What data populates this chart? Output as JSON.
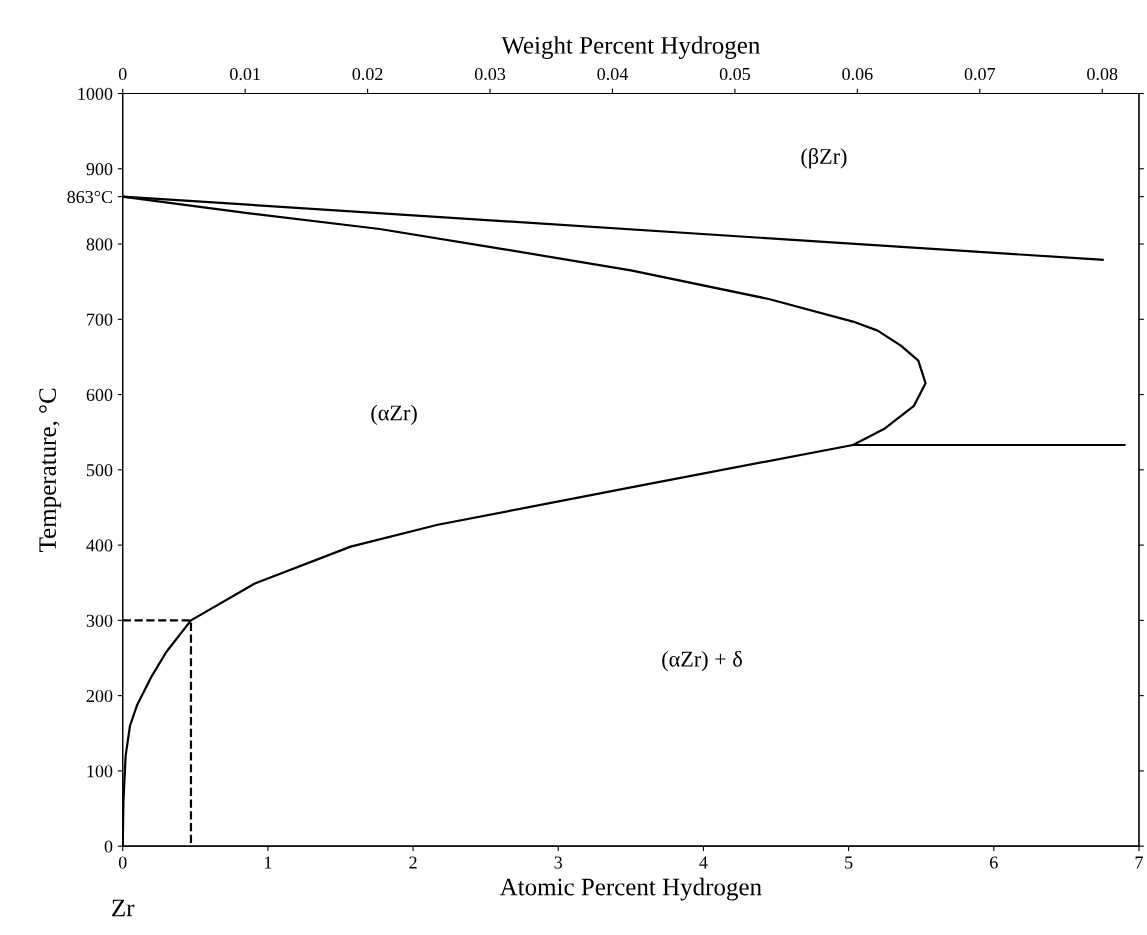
{
  "chart_data": {
    "type": "line",
    "xlabel": "Atomic Percent Hydrogen",
    "ylabel": "Temperature, °C",
    "x2label": "Weight Percent Hydrogen",
    "xlim": [
      0,
      7
    ],
    "ylim": [
      0,
      1000
    ],
    "xticks": [
      0,
      1,
      2,
      3,
      4,
      5,
      6,
      7
    ],
    "yticks": [
      0,
      100,
      200,
      300,
      400,
      500,
      600,
      700,
      800,
      {
        "value": 863,
        "label": "863°C"
      },
      900,
      1000
    ],
    "x2lim": [
      0,
      0.083
    ],
    "x2ticks": [
      0,
      0.01,
      0.02,
      0.03,
      0.04,
      0.05,
      0.06,
      0.07,
      0.08
    ],
    "grid": false,
    "legend": false,
    "marker": "none",
    "series": [
      {
        "color": "#000000",
        "line_style": "solid",
        "x": [
          0,
          6.75
        ],
        "values": [
          863,
          779
        ]
      },
      {
        "color": "#000000",
        "line_style": "solid",
        "x": [
          0,
          0.005,
          0.02,
          0.05,
          0.1,
          0.2,
          0.3,
          0.47,
          0.91,
          1.57,
          2.17,
          3.59,
          5.03,
          5.25,
          5.45,
          5.53,
          5.48,
          5.36,
          5.2,
          5.03,
          4.45,
          3.5,
          2.63,
          1.77,
          0.86,
          0
        ],
        "values": [
          0,
          60,
          120,
          160,
          188,
          226,
          258,
          300,
          349,
          398,
          427,
          480,
          533,
          555,
          585,
          615,
          645,
          665,
          685,
          697,
          727,
          765,
          793,
          820,
          841,
          863
        ]
      },
      {
        "color": "#000000",
        "line_style": "solid",
        "x": [
          5.03,
          6.9
        ],
        "values": [
          533,
          533
        ]
      },
      {
        "color": "#000000",
        "line_style": "dashed",
        "x": [
          0,
          0.47,
          0.47
        ],
        "values": [
          300,
          300,
          0
        ]
      }
    ],
    "annotations": [
      "(βZr)",
      "(αZr)",
      "(αZr) + δ",
      "Zr"
    ]
  }
}
